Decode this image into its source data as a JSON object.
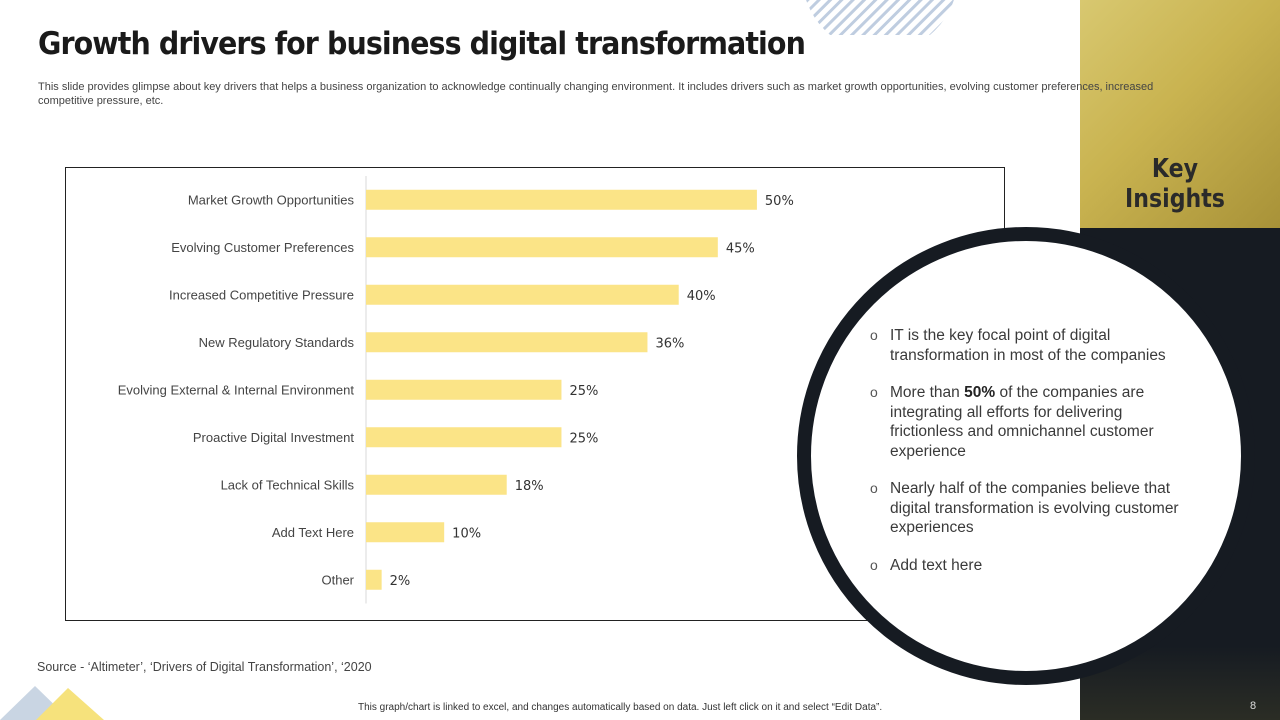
{
  "slide": {
    "title": "Growth drivers for business digital transformation",
    "subtitle": "This slide provides glimpse about key drivers that helps a business organization to acknowledge continually changing environment. It includes drivers such as market growth opportunities, evolving customer preferences, increased competitive pressure, etc.",
    "page_number": "8",
    "source": "Source - ‘Altimeter’, ‘Drivers  of Digital Transformation’,  ‘2020",
    "footer_note": "This graph/chart is linked to excel, and changes automatically based on data. Just left click on it and select “Edit Data”."
  },
  "insights": {
    "heading": "Key Insights",
    "bullet_glyph": "o",
    "items": [
      {
        "text": "IT is the key focal point of digital transformation in most of the companies"
      },
      {
        "pre": "More than ",
        "bold": "50%",
        "post": " of the companies are integrating all efforts for delivering frictionless and omnichannel customer experience"
      },
      {
        "text": "Nearly half of the companies believe that digital transformation is evolving customer experiences"
      },
      {
        "text": "Add text here"
      }
    ]
  },
  "colors": {
    "bar": "#fbe487",
    "dark": "#161b22",
    "gold": "#c9b350"
  },
  "chart_data": {
    "type": "bar",
    "orientation": "horizontal",
    "title": "",
    "xlabel": "",
    "ylabel": "",
    "xlim": [
      0,
      55
    ],
    "value_suffix": "%",
    "categories": [
      "Market Growth Opportunities",
      "Evolving Customer Preferences",
      "Increased Competitive Pressure",
      "New Regulatory Standards",
      "Evolving External & Internal Environment",
      "Proactive Digital Investment",
      "Lack of Technical Skills",
      "Add Text Here",
      "Other"
    ],
    "values": [
      50,
      45,
      40,
      36,
      25,
      25,
      18,
      10,
      2
    ],
    "grid": false,
    "legend": "none"
  }
}
